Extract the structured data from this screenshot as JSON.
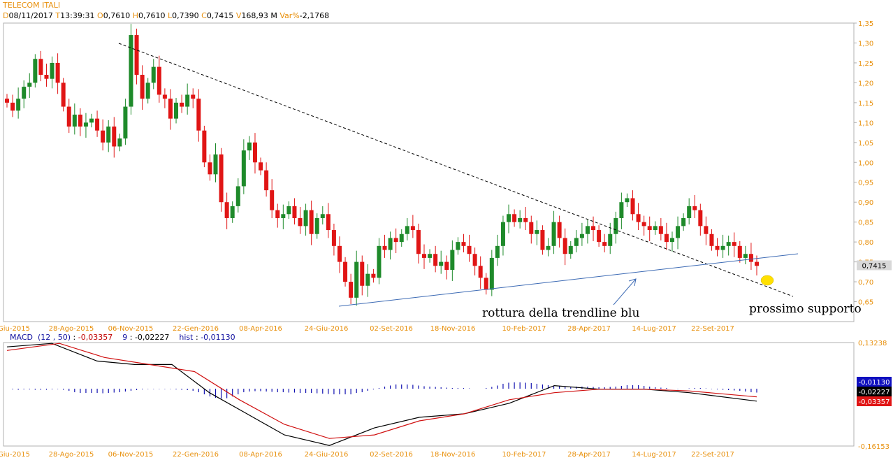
{
  "header": {
    "title": "TELECOM ITALI",
    "date_label": "D",
    "date": "08/11/2017",
    "time_label": "T",
    "time": "13:39:31",
    "open_label": "O",
    "open": "0,7610",
    "high_label": "H",
    "high": "0,7610",
    "low_label": "L",
    "low": "0,7390",
    "close_label": "C",
    "close": "0,7415",
    "volume_label": "V",
    "volume": "168,93 M",
    "var_label": "Var%",
    "var": "-2,1768"
  },
  "macd_header": {
    "name": "MACD",
    "params": "(12 , 50)",
    "macd_value": "-0,03357",
    "signal_period": "9",
    "signal_value": "-0,02227",
    "hist_label": "hist",
    "hist_value": "-0,01130"
  },
  "annotations": {
    "trendline_break": "rottura della trendline blu",
    "next_support": "prossimo supporto"
  },
  "colors": {
    "up": "#1e8a2a",
    "down": "#e01515",
    "trendline": "#3c6ab4",
    "macd_line": "#000000",
    "signal_line": "#d01010",
    "histogram": "#1010b0",
    "axis_text": "#e8900c",
    "marker": "#ffe000"
  },
  "chart_data": [
    {
      "type": "candlestick",
      "ylim": [
        0.6,
        1.35
      ],
      "y_ticks": [
        "1,35",
        "1,30",
        "1,25",
        "1,20",
        "1,15",
        "1,10",
        "1,05",
        "1,00",
        "0,95",
        "0,90",
        "0,85",
        "0,80",
        "0,75",
        "0,70",
        "0,65"
      ],
      "x_tick_labels": [
        "Giu-2015",
        "28-Ago-2015",
        "06-Nov-2015",
        "22-Gen-2016",
        "08-Apr-2016",
        "24-Giu-2016",
        "02-Set-2016",
        "18-Nov-2016",
        "10-Feb-2017",
        "28-Apr-2017",
        "14-Lug-2017",
        "22-Set-2017"
      ],
      "last_price_label": "0,7415",
      "closes": [
        1.15,
        1.13,
        1.16,
        1.19,
        1.2,
        1.26,
        1.22,
        1.21,
        1.25,
        1.2,
        1.14,
        1.09,
        1.12,
        1.09,
        1.1,
        1.11,
        1.08,
        1.05,
        1.09,
        1.04,
        1.06,
        1.14,
        1.32,
        1.22,
        1.16,
        1.2,
        1.24,
        1.17,
        1.16,
        1.11,
        1.15,
        1.14,
        1.17,
        1.16,
        1.08,
        1.0,
        0.97,
        1.02,
        0.9,
        0.86,
        0.89,
        0.94,
        1.03,
        1.05,
        1.0,
        0.98,
        0.93,
        0.88,
        0.86,
        0.87,
        0.89,
        0.86,
        0.84,
        0.88,
        0.82,
        0.86,
        0.87,
        0.83,
        0.79,
        0.75,
        0.7,
        0.66,
        0.75,
        0.69,
        0.72,
        0.71,
        0.79,
        0.78,
        0.81,
        0.8,
        0.82,
        0.84,
        0.83,
        0.77,
        0.76,
        0.77,
        0.74,
        0.75,
        0.73,
        0.78,
        0.8,
        0.79,
        0.77,
        0.74,
        0.71,
        0.68,
        0.76,
        0.79,
        0.85,
        0.87,
        0.85,
        0.86,
        0.85,
        0.82,
        0.83,
        0.78,
        0.79,
        0.85,
        0.81,
        0.77,
        0.79,
        0.81,
        0.82,
        0.84,
        0.83,
        0.8,
        0.79,
        0.82,
        0.86,
        0.9,
        0.91,
        0.87,
        0.85,
        0.84,
        0.83,
        0.84,
        0.82,
        0.8,
        0.81,
        0.84,
        0.86,
        0.89,
        0.88,
        0.84,
        0.82,
        0.79,
        0.78,
        0.79,
        0.8,
        0.79,
        0.76,
        0.77,
        0.75,
        0.74
      ],
      "annotations": [
        "rottura della trendline blu",
        "prossimo supporto"
      ]
    },
    {
      "type": "macd",
      "ylim": [
        -0.16153,
        0.13238
      ],
      "y_ticks": [
        "0,13238",
        "-0,16153"
      ],
      "x_tick_labels": [
        "Giu-2015",
        "28-Ago-2015",
        "06-Nov-2015",
        "22-Gen-2016",
        "08-Apr-2016",
        "24-Giu-2016",
        "02-Set-2016",
        "18-Nov-2016",
        "10-Feb-2017",
        "28-Apr-2017",
        "14-Lug-2017",
        "22-Set-2017"
      ],
      "value_labels": [
        "-0,01130",
        "-0,02227",
        "-0,03357"
      ],
      "series": [
        {
          "name": "MACD",
          "points": [
            [
              0.0,
              0.12
            ],
            [
              0.06,
              0.13
            ],
            [
              0.12,
              0.08
            ],
            [
              0.17,
              0.07
            ],
            [
              0.22,
              0.07
            ],
            [
              0.27,
              -0.01
            ],
            [
              0.32,
              -0.07
            ],
            [
              0.37,
              -0.13
            ],
            [
              0.43,
              -0.16
            ],
            [
              0.49,
              -0.11
            ],
            [
              0.55,
              -0.08
            ],
            [
              0.61,
              -0.07
            ],
            [
              0.67,
              -0.04
            ],
            [
              0.73,
              0.01
            ],
            [
              0.79,
              0.0
            ],
            [
              0.85,
              0.0
            ],
            [
              0.91,
              -0.01
            ],
            [
              1.0,
              -0.034
            ]
          ]
        },
        {
          "name": "Signal",
          "points": [
            [
              0.0,
              0.11
            ],
            [
              0.07,
              0.13
            ],
            [
              0.13,
              0.09
            ],
            [
              0.19,
              0.07
            ],
            [
              0.25,
              0.05
            ],
            [
              0.31,
              -0.03
            ],
            [
              0.37,
              -0.1
            ],
            [
              0.43,
              -0.14
            ],
            [
              0.49,
              -0.13
            ],
            [
              0.55,
              -0.09
            ],
            [
              0.61,
              -0.07
            ],
            [
              0.67,
              -0.03
            ],
            [
              0.73,
              -0.01
            ],
            [
              0.79,
              0.0
            ],
            [
              0.85,
              0.0
            ],
            [
              0.91,
              -0.005
            ],
            [
              1.0,
              -0.022
            ]
          ]
        }
      ],
      "histogram": [
        0.0,
        -0.002,
        -0.003,
        -0.002,
        -0.002,
        -0.003,
        -0.003,
        -0.003,
        -0.002,
        -0.001,
        -0.003,
        -0.006,
        -0.01,
        -0.012,
        -0.012,
        -0.012,
        -0.012,
        -0.013,
        -0.012,
        -0.011,
        -0.01,
        -0.008,
        -0.006,
        -0.004,
        -0.002,
        -0.001,
        -0.001,
        -0.001,
        -0.001,
        -0.001,
        -0.002,
        -0.003,
        -0.004,
        -0.006,
        -0.01,
        -0.016,
        -0.022,
        -0.026,
        -0.028,
        -0.027,
        -0.022,
        -0.016,
        -0.01,
        -0.008,
        -0.007,
        -0.007,
        -0.008,
        -0.009,
        -0.01,
        -0.01,
        -0.011,
        -0.011,
        -0.012,
        -0.012,
        -0.012,
        -0.013,
        -0.014,
        -0.015,
        -0.016,
        -0.016,
        -0.016,
        -0.016,
        -0.012,
        -0.01,
        -0.006,
        -0.002,
        0.002,
        0.006,
        0.009,
        0.012,
        0.012,
        0.012,
        0.011,
        0.009,
        0.007,
        0.006,
        0.005,
        0.004,
        0.003,
        0.002,
        0.002,
        0.002,
        0.001,
        0.0,
        0.0,
        0.002,
        0.005,
        0.009,
        0.014,
        0.017,
        0.018,
        0.018,
        0.017,
        0.016,
        0.014,
        0.012,
        0.01,
        0.008,
        0.007,
        0.006,
        0.006,
        0.006,
        0.006,
        0.006,
        0.005,
        0.004,
        0.004,
        0.005,
        0.006,
        0.008,
        0.01,
        0.01,
        0.01,
        0.008,
        0.006,
        0.004,
        0.003,
        0.002,
        0.0,
        -0.001,
        0.0,
        0.001,
        0.002,
        0.002,
        0.001,
        -0.001,
        -0.002,
        -0.003,
        -0.004,
        -0.005,
        -0.006,
        -0.008,
        -0.01,
        -0.011
      ]
    }
  ]
}
